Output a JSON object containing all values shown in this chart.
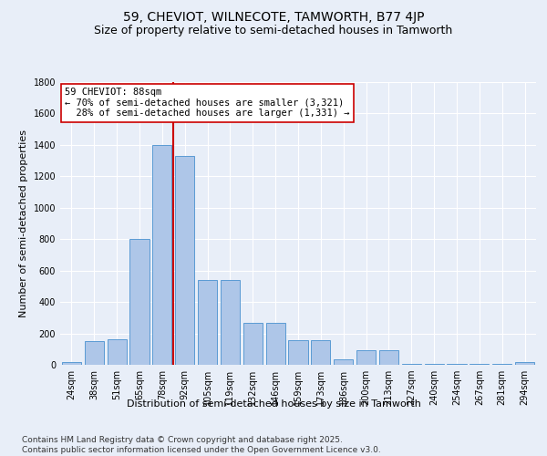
{
  "title": "59, CHEVIOT, WILNECOTE, TAMWORTH, B77 4JP",
  "subtitle": "Size of property relative to semi-detached houses in Tamworth",
  "xlabel": "Distribution of semi-detached houses by size in Tamworth",
  "ylabel": "Number of semi-detached properties",
  "categories": [
    "24sqm",
    "38sqm",
    "51sqm",
    "65sqm",
    "78sqm",
    "92sqm",
    "105sqm",
    "119sqm",
    "132sqm",
    "146sqm",
    "159sqm",
    "173sqm",
    "186sqm",
    "200sqm",
    "213sqm",
    "227sqm",
    "240sqm",
    "254sqm",
    "267sqm",
    "281sqm",
    "294sqm"
  ],
  "values": [
    15,
    150,
    165,
    800,
    1400,
    1330,
    540,
    540,
    270,
    270,
    155,
    155,
    35,
    95,
    95,
    5,
    5,
    5,
    5,
    5,
    15
  ],
  "bar_color": "#aec6e8",
  "bar_edge_color": "#5a9bd4",
  "vline_pos": 5.0,
  "vline_color": "#cc0000",
  "annotation_line1": "59 CHEVIOT: 88sqm",
  "annotation_line2": "← 70% of semi-detached houses are smaller (3,321)",
  "annotation_line3": "  28% of semi-detached houses are larger (1,331) →",
  "annotation_box_color": "#ffffff",
  "annotation_box_edge": "#cc0000",
  "ylim": [
    0,
    1800
  ],
  "yticks": [
    0,
    200,
    400,
    600,
    800,
    1000,
    1200,
    1400,
    1600,
    1800
  ],
  "bg_color": "#e8eef8",
  "plot_bg_color": "#e8eef8",
  "footer": "Contains HM Land Registry data © Crown copyright and database right 2025.\nContains public sector information licensed under the Open Government Licence v3.0.",
  "title_fontsize": 10,
  "subtitle_fontsize": 9,
  "label_fontsize": 8,
  "tick_fontsize": 7,
  "footer_fontsize": 6.5,
  "annotation_fontsize": 7.5
}
